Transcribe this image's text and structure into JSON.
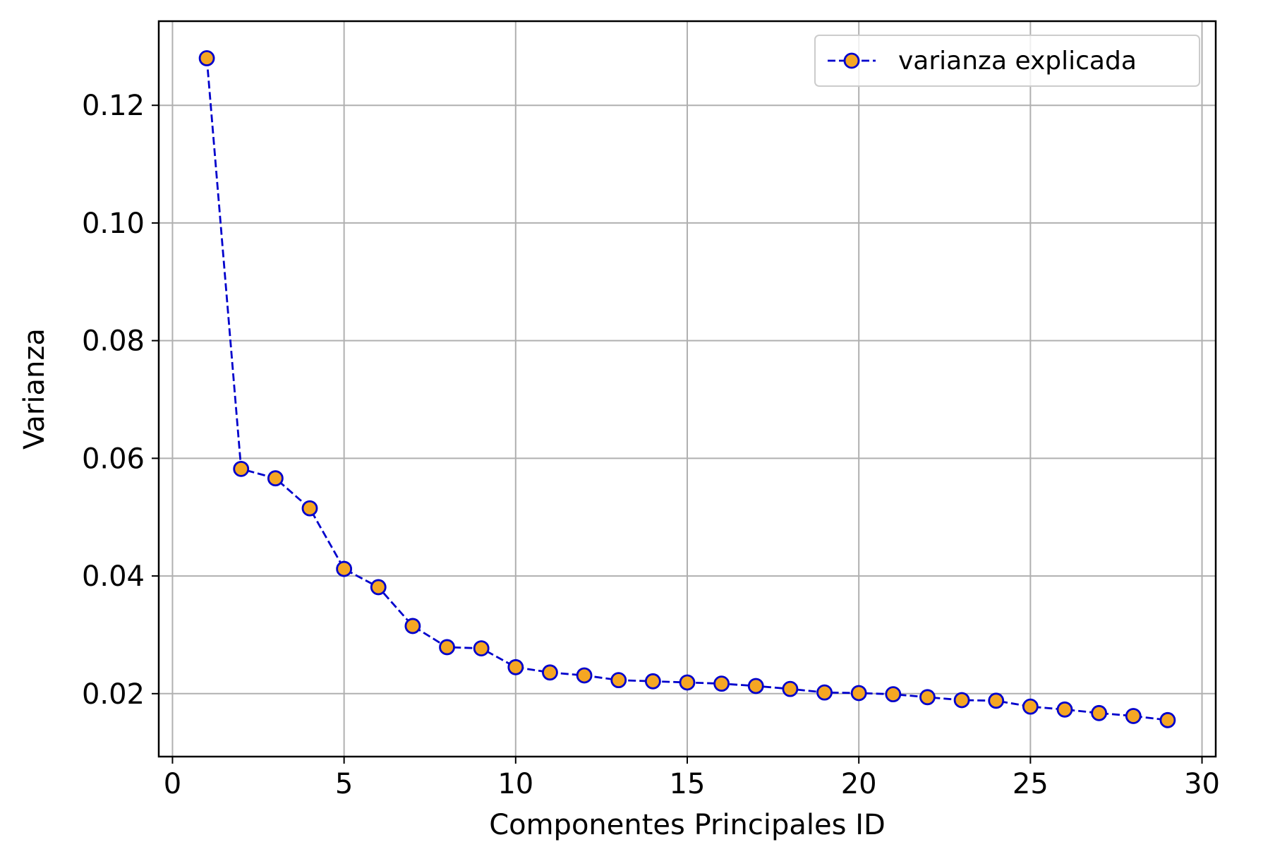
{
  "chart_data": {
    "type": "line",
    "xlabel": "Componentes Principales ID",
    "ylabel": "Varianza",
    "xlim": [
      -0.4,
      30.4
    ],
    "ylim": [
      0.0093,
      0.1343
    ],
    "xticks": [
      0,
      5,
      10,
      15,
      20,
      25,
      30
    ],
    "xtick_labels": [
      "0",
      "5",
      "10",
      "15",
      "20",
      "25",
      "30"
    ],
    "yticks": [
      0.02,
      0.04,
      0.06,
      0.08,
      0.1,
      0.12
    ],
    "ytick_labels": [
      "0.02",
      "0.04",
      "0.06",
      "0.08",
      "0.10",
      "0.12"
    ],
    "grid": true,
    "legend_position": "top-right",
    "series": [
      {
        "name": "varianza explicada",
        "line_color": "#0000cc",
        "line_style": "dashed",
        "marker": "circle",
        "marker_face": "#f5a623",
        "marker_edge": "#0000cc",
        "x": [
          1,
          2,
          3,
          4,
          5,
          6,
          7,
          8,
          9,
          10,
          11,
          12,
          13,
          14,
          15,
          16,
          17,
          18,
          19,
          20,
          21,
          22,
          23,
          24,
          25,
          26,
          27,
          28,
          29
        ],
        "y": [
          0.128,
          0.0582,
          0.0566,
          0.0515,
          0.0412,
          0.0381,
          0.0315,
          0.0279,
          0.0277,
          0.0245,
          0.0236,
          0.0231,
          0.0223,
          0.0221,
          0.0219,
          0.0217,
          0.0213,
          0.0208,
          0.0202,
          0.0201,
          0.0199,
          0.0194,
          0.0189,
          0.0188,
          0.0178,
          0.0173,
          0.0167,
          0.0162,
          0.0155
        ]
      }
    ]
  }
}
